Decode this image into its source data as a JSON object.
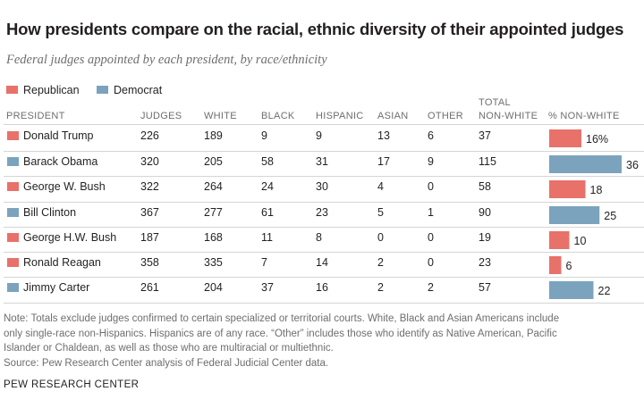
{
  "title": "How presidents compare on the racial, ethnic diversity of their appointed judges",
  "subtitle": "Federal judges appointed by each president, by race/ethnicity",
  "colors": {
    "republican": "#e8716a",
    "democrat": "#7ba3be"
  },
  "legend": [
    {
      "label": "Republican",
      "party": "republican"
    },
    {
      "label": "Democrat",
      "party": "democrat"
    }
  ],
  "headers": {
    "president": "PRESIDENT",
    "judges": "JUDGES",
    "white": "WHITE",
    "black": "BLACK",
    "hispanic": "HISPANIC",
    "asian": "ASIAN",
    "other": "OTHER",
    "total_line1": "TOTAL",
    "total_line2": "NON-WHITE",
    "pct": "% NON-WHITE"
  },
  "chart_data": {
    "type": "table",
    "title": "How presidents compare on the racial, ethnic diversity of their appointed judges",
    "columns": [
      "PRESIDENT",
      "JUDGES",
      "WHITE",
      "BLACK",
      "HISPANIC",
      "ASIAN",
      "OTHER",
      "TOTAL NON-WHITE",
      "% NON-WHITE"
    ],
    "bar_column": "% NON-WHITE",
    "bar_max": 36,
    "rows": [
      {
        "president": "Donald Trump",
        "party": "republican",
        "judges": "226",
        "white": "189",
        "black": "9",
        "hispanic": "9",
        "asian": "13",
        "other": "6",
        "total": "37",
        "pct": 16,
        "pct_label": "16%"
      },
      {
        "president": "Barack Obama",
        "party": "democrat",
        "judges": "320",
        "white": "205",
        "black": "58",
        "hispanic": "31",
        "asian": "17",
        "other": "9",
        "total": "115",
        "pct": 36,
        "pct_label": "36"
      },
      {
        "president": "George W. Bush",
        "party": "republican",
        "judges": "322",
        "white": "264",
        "black": "24",
        "hispanic": "30",
        "asian": "4",
        "other": "0",
        "total": "58",
        "pct": 18,
        "pct_label": "18"
      },
      {
        "president": "Bill Clinton",
        "party": "democrat",
        "judges": "367",
        "white": "277",
        "black": "61",
        "hispanic": "23",
        "asian": "5",
        "other": "1",
        "total": "90",
        "pct": 25,
        "pct_label": "25"
      },
      {
        "president": "George H.W. Bush",
        "party": "republican",
        "judges": "187",
        "white": "168",
        "black": "11",
        "hispanic": "8",
        "asian": "0",
        "other": "0",
        "total": "19",
        "pct": 10,
        "pct_label": "10"
      },
      {
        "president": "Ronald Reagan",
        "party": "republican",
        "judges": "358",
        "white": "335",
        "black": "7",
        "hispanic": "14",
        "asian": "2",
        "other": "0",
        "total": "23",
        "pct": 6,
        "pct_label": "6"
      },
      {
        "president": "Jimmy Carter",
        "party": "democrat",
        "judges": "261",
        "white": "204",
        "black": "37",
        "hispanic": "16",
        "asian": "2",
        "other": "2",
        "total": "57",
        "pct": 22,
        "pct_label": "22"
      }
    ]
  },
  "note_lines": [
    "Note: Totals exclude judges confirmed to certain specialized or territorial courts. White, Black and Asian Americans include",
    "only single-race non-Hispanics. Hispanics are of any race. “Other” includes those who identify as Native American, Pacific",
    "Islander or Chaldean, as well as those who are multiracial or multiethnic.",
    "Source: Pew Research Center analysis of Federal Judicial Center data."
  ],
  "brand": "PEW RESEARCH CENTER"
}
